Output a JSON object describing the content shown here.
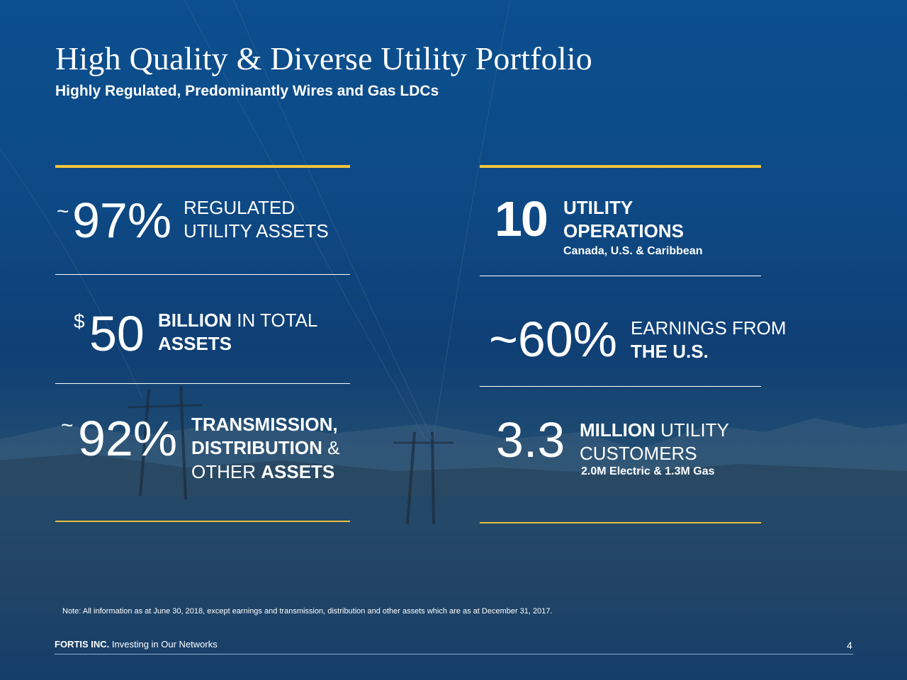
{
  "header": {
    "title": "High Quality & Diverse Utility Portfolio",
    "subtitle": "Highly Regulated, Predominantly Wires and Gas LDCs"
  },
  "stats": {
    "regulated": {
      "prefix": "~",
      "value": "97%",
      "line1": "REGULATED",
      "line2": "UTILITY ASSETS"
    },
    "operations": {
      "value": "10",
      "line1": "UTILITY",
      "line2": "OPERATIONS",
      "detail": "Canada, U.S. & Caribbean"
    },
    "assets": {
      "prefix": "$",
      "value": "50",
      "line1_bold": "BILLION",
      "line1_rest": " IN TOTAL",
      "line2": "ASSETS"
    },
    "us_earnings": {
      "value": "~60%",
      "line1": "EARNINGS FROM",
      "line2": "THE U.S."
    },
    "tdo": {
      "prefix": "~",
      "value": "92%",
      "line1": "TRANSMISSION,",
      "line2_bold": "DISTRIBUTION",
      "line2_rest": " &",
      "line3_plain": "OTHER ",
      "line3_bold": "ASSETS"
    },
    "customers": {
      "value": "3.3",
      "line1_bold": "MILLION",
      "line1_rest": " UTILITY",
      "line2": "CUSTOMERS",
      "detail": "2.0M Electric & 1.3M Gas"
    }
  },
  "note": "Note: All information as at June 30, 2018, except earnings and transmission, distribution and other assets which are as at December 31, 2017.",
  "footer": {
    "company": "FORTIS INC.",
    "tagline": " Investing in Our Networks",
    "page_number": "4"
  },
  "colors": {
    "gold": "#f0c43c",
    "background": "#0d4a86"
  }
}
